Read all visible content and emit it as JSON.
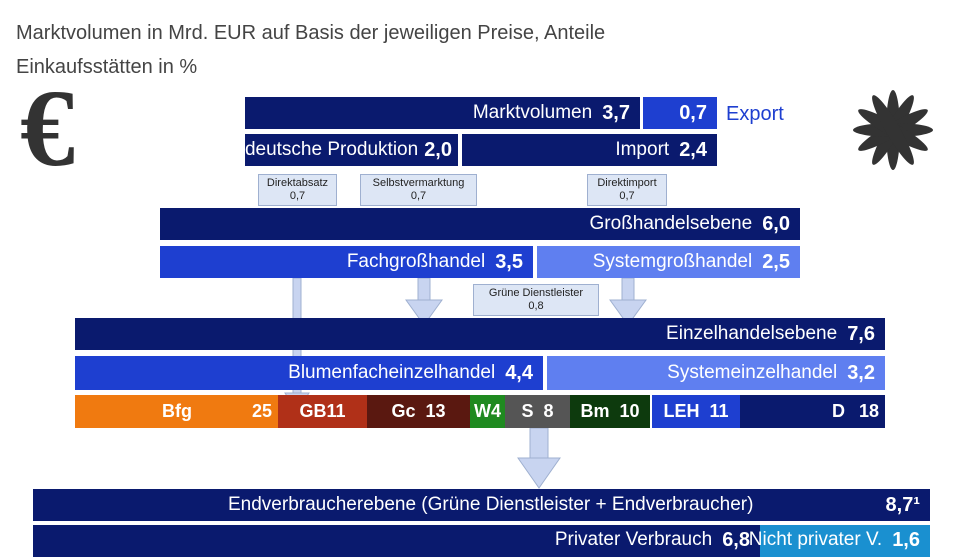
{
  "subtitle": [
    "Marktvolumen in Mrd. EUR auf Basis der jeweiligen Preise, Anteile",
    "Einkaufsstätten in %"
  ],
  "market": {
    "label": "Marktvolumen",
    "value": "3,7",
    "export_value": "0,7",
    "export_label": "Export"
  },
  "sources": {
    "production_label": "deutsche Produktion",
    "production_value": "2,0",
    "import_label": "Import",
    "import_value": "2,4"
  },
  "channels": [
    {
      "label": "Direktabsatz",
      "value": "0,7"
    },
    {
      "label": "Selbstvermarktung",
      "value": "0,7"
    },
    {
      "label": "Direktimport",
      "value": "0,7"
    }
  ],
  "wholesale": {
    "label": "Großhandelsebene",
    "value": "6,0",
    "specialist_label": "Fachgroßhandel",
    "specialist_value": "3,5",
    "system_label": "Systemgroßhandel",
    "system_value": "2,5"
  },
  "green_services": {
    "label": "Grüne Dienstleister",
    "value": "0,8"
  },
  "retail": {
    "label": "Einzelhandelsebene",
    "value": "7,6",
    "florist_label": "Blumenfacheinzelhandel",
    "florist_value": "4,4",
    "system_label": "Systemeinzelhandel",
    "system_value": "3,2"
  },
  "shares": [
    {
      "label": "Bfg",
      "value": "25"
    },
    {
      "label": "GB11"
    },
    {
      "label": "Gc",
      "value": "13"
    },
    {
      "label": "W4"
    },
    {
      "label": "S",
      "value": "8"
    },
    {
      "label": "Bm",
      "value": "10"
    },
    {
      "label": "LEH",
      "value": "11"
    },
    {
      "label": "D",
      "value": "18"
    }
  ],
  "consumer": {
    "label": "Endverbraucherebene (Grüne Dienstleister + Endverbraucher)",
    "value": "8,7¹",
    "private_label": "Privater Verbrauch",
    "private_value": "6,8",
    "nonprivate_label": "Nicht privater V.",
    "nonprivate_value": "1,6"
  }
}
